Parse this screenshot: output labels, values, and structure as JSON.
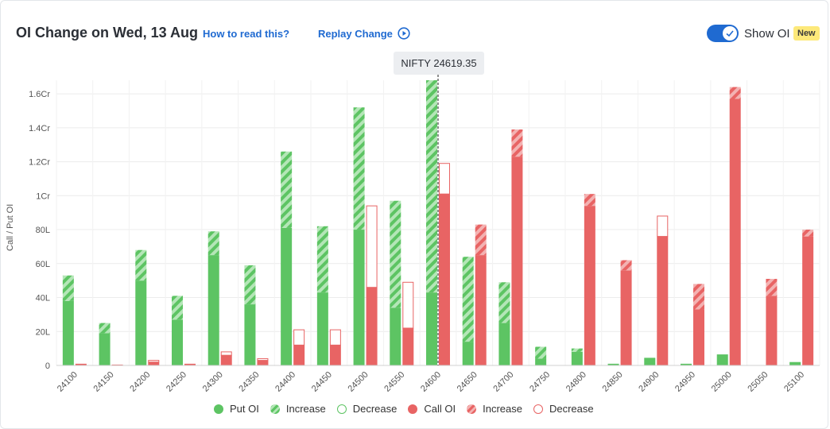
{
  "header": {
    "title": "OI Change on Wed, 13 Aug",
    "how_to_read": "How to read this?",
    "replay": "Replay Change",
    "show_oi": "Show OI",
    "new_badge": "New"
  },
  "spot_label": "NIFTY 24619.35",
  "colors": {
    "put": "#5dc463",
    "put_light": "#b4e6b7",
    "call": "#e86464",
    "call_light": "#f3b2b2",
    "accent": "#1f6ad1"
  },
  "legend": [
    {
      "label": "Put OI",
      "style": "put-solid"
    },
    {
      "label": "Increase",
      "style": "put-hatch"
    },
    {
      "label": "Decrease",
      "style": "put-outline"
    },
    {
      "label": "Call OI",
      "style": "call-solid"
    },
    {
      "label": "Increase",
      "style": "call-hatch"
    },
    {
      "label": "Decrease",
      "style": "call-outline"
    }
  ],
  "chart_data": {
    "type": "bar",
    "ylabel": "Call / Put OI",
    "ylim": [
      0,
      16800000
    ],
    "yticks": [
      0,
      2000000,
      4000000,
      6000000,
      8000000,
      10000000,
      12000000,
      14000000,
      16000000
    ],
    "ytick_labels": [
      "0",
      "20L",
      "40L",
      "60L",
      "80L",
      "1Cr",
      "1.2Cr",
      "1.4Cr",
      "1.6Cr"
    ],
    "spot_strike": 24600,
    "categories": [
      "24100",
      "24150",
      "24200",
      "24250",
      "24300",
      "24350",
      "24400",
      "24450",
      "24500",
      "24550",
      "24600",
      "24650",
      "24700",
      "24750",
      "24800",
      "24850",
      "24900",
      "24950",
      "25000",
      "25050",
      "25100"
    ],
    "series": [
      {
        "name": "Put OI",
        "values": [
          3800000,
          1900000,
          5000000,
          2700000,
          6500000,
          3600000,
          8100000,
          4300000,
          8000000,
          3400000,
          4300000,
          1400000,
          2500000,
          400000,
          800000,
          100000,
          450000,
          100000,
          650000,
          0,
          200000
        ]
      },
      {
        "name": "Increase",
        "values": [
          1500000,
          600000,
          1800000,
          1400000,
          1400000,
          2300000,
          4500000,
          3900000,
          7200000,
          6300000,
          12500000,
          5000000,
          2400000,
          700000,
          200000,
          0,
          0,
          0,
          0,
          0,
          0
        ]
      },
      {
        "name": "Decrease",
        "values": [
          0,
          0,
          0,
          0,
          0,
          0,
          0,
          0,
          0,
          0,
          0,
          0,
          0,
          0,
          0,
          0,
          0,
          0,
          0,
          0,
          0
        ]
      },
      {
        "name": "Call OI",
        "values": [
          100000,
          50000,
          200000,
          100000,
          600000,
          300000,
          1200000,
          1200000,
          4600000,
          2200000,
          10100000,
          6500000,
          12300000,
          0,
          9400000,
          5600000,
          7600000,
          3300000,
          15700000,
          4100000,
          7600000
        ]
      },
      {
        "name": "Increase",
        "values": [
          0,
          0,
          0,
          0,
          0,
          0,
          0,
          0,
          0,
          0,
          0,
          1800000,
          1600000,
          0,
          700000,
          600000,
          0,
          1500000,
          700000,
          1000000,
          400000
        ]
      },
      {
        "name": "Decrease",
        "values": [
          0,
          0,
          100000,
          0,
          200000,
          100000,
          900000,
          900000,
          4800000,
          2700000,
          1800000,
          0,
          0,
          0,
          0,
          0,
          1200000,
          0,
          0,
          0,
          0
        ]
      }
    ]
  }
}
